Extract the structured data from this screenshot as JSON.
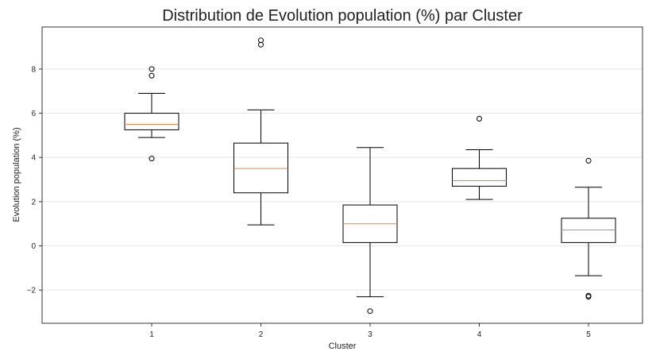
{
  "chart_data": {
    "type": "box",
    "title": "Distribution de Evolution population (%) par Cluster",
    "xlabel": "Cluster",
    "ylabel": "Evolution population (%)",
    "ylim": [
      -3.5,
      9.9
    ],
    "yticks": [
      -2,
      0,
      2,
      4,
      6,
      8
    ],
    "ytick_labels": [
      "−2",
      "0",
      "2",
      "4",
      "6",
      "8"
    ],
    "grid": "horizontal",
    "colors": {
      "box": "#000000",
      "median": "#d9895b",
      "grid": "#e6e6e6",
      "frame": "#333333"
    },
    "categories": [
      "1",
      "2",
      "3",
      "4",
      "5"
    ],
    "boxes": [
      {
        "cluster": "1",
        "whisker_low": 4.9,
        "q1": 5.25,
        "median": 5.5,
        "q3": 6.0,
        "whisker_high": 6.9,
        "outliers": [
          8.0,
          7.7,
          3.95
        ]
      },
      {
        "cluster": "2",
        "whisker_low": 0.95,
        "q1": 2.4,
        "median": 3.5,
        "q3": 4.65,
        "whisker_high": 6.15,
        "outliers": [
          9.3,
          9.1
        ]
      },
      {
        "cluster": "3",
        "whisker_low": -2.3,
        "q1": 0.15,
        "median": 1.0,
        "q3": 1.85,
        "whisker_high": 4.45,
        "outliers": [
          -2.95
        ]
      },
      {
        "cluster": "4",
        "whisker_low": 2.1,
        "q1": 2.7,
        "median": 2.95,
        "q3": 3.5,
        "whisker_high": 4.35,
        "outliers": [
          5.75
        ]
      },
      {
        "cluster": "5",
        "whisker_low": -1.35,
        "q1": 0.15,
        "median": 0.72,
        "q3": 1.25,
        "whisker_high": 2.65,
        "outliers": [
          3.85,
          -2.25,
          -2.3
        ]
      }
    ]
  }
}
